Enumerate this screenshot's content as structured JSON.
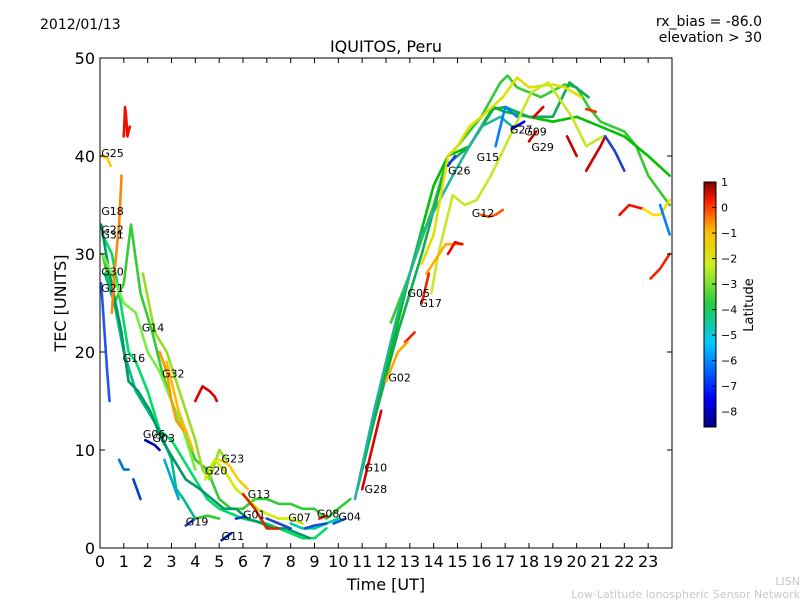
{
  "header": {
    "date": "2012/01/13",
    "rx_bias": "rx_bias = -86.0",
    "elevation": "elevation > 30"
  },
  "credit": {
    "line1": "LISN",
    "line2": "Low-Latitude Ionospheric Sensor Network"
  },
  "chart_data": {
    "type": "scatter",
    "title": "IQUITOS, Peru",
    "xlabel": "Time [UT]",
    "ylabel": "TEC [UNITS]",
    "xlim": [
      0,
      24
    ],
    "ylim": [
      0,
      50
    ],
    "xticks": [
      0,
      1,
      2,
      3,
      4,
      5,
      6,
      7,
      8,
      9,
      10,
      11,
      12,
      13,
      14,
      15,
      16,
      17,
      18,
      19,
      20,
      21,
      22,
      23
    ],
    "yticks": [
      0,
      10,
      20,
      30,
      40,
      50
    ],
    "grid": false,
    "colorbar": {
      "label": "Latitude",
      "range": [
        -8.6,
        1.0
      ],
      "ticks": [
        1,
        0,
        -1,
        -2,
        -3,
        -4,
        -5,
        -6,
        -7,
        -8
      ],
      "colormap": [
        "#00007f",
        "#0000ff",
        "#007fff",
        "#00ffff",
        "#7fff7f",
        "#ffff00",
        "#ff7f00",
        "#ff0000",
        "#7f0000"
      ]
    },
    "satellite_labels": [
      {
        "name": "G25",
        "x": 0.05,
        "y": 39.9
      },
      {
        "name": "G18",
        "x": 0.05,
        "y": 34.0
      },
      {
        "name": "G22",
        "x": 0.05,
        "y": 32.1
      },
      {
        "name": "G31",
        "x": 0.05,
        "y": 31.6
      },
      {
        "name": "G30",
        "x": 0.05,
        "y": 27.8
      },
      {
        "name": "G21",
        "x": 0.05,
        "y": 26.1
      },
      {
        "name": "G14",
        "x": 1.75,
        "y": 22.1
      },
      {
        "name": "G16",
        "x": 0.95,
        "y": 19.0
      },
      {
        "name": "G32",
        "x": 2.6,
        "y": 17.4
      },
      {
        "name": "G06",
        "x": 1.8,
        "y": 11.2
      },
      {
        "name": "G03",
        "x": 2.2,
        "y": 10.8
      },
      {
        "name": "G23",
        "x": 5.1,
        "y": 8.7
      },
      {
        "name": "G20",
        "x": 4.4,
        "y": 7.5
      },
      {
        "name": "G13",
        "x": 6.2,
        "y": 5.1
      },
      {
        "name": "G01",
        "x": 6.0,
        "y": 3.0
      },
      {
        "name": "G07",
        "x": 7.9,
        "y": 2.7
      },
      {
        "name": "G08",
        "x": 9.1,
        "y": 3.1
      },
      {
        "name": "G04",
        "x": 10.0,
        "y": 2.8
      },
      {
        "name": "G19",
        "x": 3.6,
        "y": 2.3
      },
      {
        "name": "G11",
        "x": 5.1,
        "y": 0.8
      },
      {
        "name": "G10",
        "x": 11.1,
        "y": 7.8
      },
      {
        "name": "G28",
        "x": 11.1,
        "y": 5.6
      },
      {
        "name": "G02",
        "x": 12.1,
        "y": 17.0
      },
      {
        "name": "G05",
        "x": 12.9,
        "y": 25.6
      },
      {
        "name": "G17",
        "x": 13.4,
        "y": 24.6
      },
      {
        "name": "G26",
        "x": 14.6,
        "y": 38.1
      },
      {
        "name": "G15",
        "x": 15.8,
        "y": 39.5
      },
      {
        "name": "G12",
        "x": 15.6,
        "y": 33.8
      },
      {
        "name": "G27",
        "x": 17.2,
        "y": 42.3
      },
      {
        "name": "G09",
        "x": 17.8,
        "y": 42.1
      },
      {
        "name": "G29",
        "x": 18.1,
        "y": 40.5
      }
    ],
    "series": [
      {
        "color": "#33cc33",
        "x": [
          12.2,
          13,
          14,
          14.6,
          15,
          16,
          16.8,
          17.1,
          17.5,
          18.5,
          19.5,
          20,
          20.5,
          21,
          21.5,
          22,
          22.5,
          23,
          23.6,
          23.9
        ],
        "y": [
          23,
          28,
          35,
          40,
          41,
          44,
          47.5,
          48.2,
          47,
          46,
          47.3,
          47,
          45,
          43.5,
          43,
          42.5,
          41,
          38,
          36,
          35
        ]
      },
      {
        "color": "#00c000",
        "x": [
          11.0,
          12,
          13,
          14,
          14.6,
          15.5,
          16.5,
          17,
          18,
          19,
          20,
          21,
          22,
          23,
          23.9
        ],
        "y": [
          8,
          18,
          28,
          37,
          40,
          41,
          45,
          44.5,
          44,
          43.5,
          44,
          43,
          42,
          40,
          38
        ]
      },
      {
        "color": "#11aa55",
        "x": [
          10.8,
          11.5,
          12.5,
          13.5,
          14.5,
          15.5,
          16.5,
          17,
          18,
          19,
          19.7,
          20.5
        ],
        "y": [
          6,
          13,
          22,
          30,
          39,
          41,
          44.8,
          45,
          44,
          44,
          47.5,
          46
        ]
      },
      {
        "color": "#22b3a0",
        "x": [
          10.7,
          11.5,
          12.5,
          13.5,
          14.8,
          15.5,
          16,
          16.8,
          17.3
        ],
        "y": [
          5,
          14,
          24,
          32,
          38,
          41,
          43,
          44,
          43
        ]
      },
      {
        "color": "#e0e000",
        "x": [
          13.5,
          14,
          14.6,
          15,
          15.5,
          16,
          16.9,
          17.5,
          18,
          19,
          19.5,
          20.2
        ],
        "y": [
          29,
          32,
          40,
          41,
          43,
          44,
          46,
          48,
          47,
          47.3,
          47,
          46
        ]
      },
      {
        "color": "#c8e628",
        "x": [
          13.9,
          14.2,
          14.8,
          15.3,
          15.8,
          16.4,
          17.2,
          18.1,
          18.8,
          19.8,
          20.4,
          21.1
        ],
        "y": [
          26,
          30,
          36,
          35,
          35.5,
          38,
          42,
          46.5,
          47.5,
          44,
          41,
          42
        ]
      },
      {
        "color": "#ffaa00",
        "x": [
          13.7,
          14.5,
          15.2
        ],
        "y": [
          28,
          31,
          31
        ]
      },
      {
        "color": "#ee0000",
        "x": [
          14.6,
          14.9,
          15.2
        ],
        "y": [
          30,
          31.2,
          31
        ]
      },
      {
        "color": "#ff5500",
        "x": [
          16.0,
          16.3,
          16.6,
          16.9
        ],
        "y": [
          34,
          33.8,
          34,
          34.5
        ]
      },
      {
        "color": "#1e3cdc",
        "x": [
          14.6,
          14.9
        ],
        "y": [
          39,
          40
        ]
      },
      {
        "color": "#007fff",
        "x": [
          16.6,
          17.0,
          17.5
        ],
        "y": [
          41,
          45,
          44
        ]
      },
      {
        "color": "#0000cc",
        "x": [
          17.3,
          17.8
        ],
        "y": [
          42.8,
          43.5
        ]
      },
      {
        "color": "#dd0000",
        "x": [
          18.2,
          18.6
        ],
        "y": [
          44,
          45
        ]
      },
      {
        "color": "#cc0000",
        "x": [
          18.0,
          18.3
        ],
        "y": [
          41.5,
          42.5
        ]
      },
      {
        "color": "#cc0000",
        "x": [
          19.6,
          20.0
        ],
        "y": [
          42,
          40
        ]
      },
      {
        "color": "#cc0000",
        "x": [
          20.4,
          21.0,
          21.2
        ],
        "y": [
          38.5,
          41,
          42
        ]
      },
      {
        "color": "#ee3300",
        "x": [
          20.4,
          20.8
        ],
        "y": [
          44.8,
          44.5
        ]
      },
      {
        "color": "#2040cc",
        "x": [
          21.2,
          21.6,
          22.0
        ],
        "y": [
          42,
          40.5,
          38.5
        ]
      },
      {
        "color": "#ee1100",
        "x": [
          21.8,
          22.2,
          22.8
        ],
        "y": [
          34,
          35,
          34.6
        ]
      },
      {
        "color": "#ffdd00",
        "x": [
          22.8,
          23.2,
          23.5,
          23.9
        ],
        "y": [
          34.6,
          34,
          34,
          35.5
        ]
      },
      {
        "color": "#ee2200",
        "x": [
          23.1,
          23.5,
          23.9
        ],
        "y": [
          27.5,
          28.5,
          30
        ]
      },
      {
        "color": "#007fff",
        "x": [
          23.5,
          23.9
        ],
        "y": [
          35,
          32
        ]
      },
      {
        "color": "#2255ee",
        "x": [
          0.05,
          0.3,
          0.4
        ],
        "y": [
          27,
          18,
          15
        ]
      },
      {
        "color": "#00dd66",
        "x": [
          0.1,
          0.5,
          0.8,
          1.2,
          1.5,
          2.0,
          2.5,
          3.0,
          3.5,
          4.0,
          4.5,
          5.0,
          5.5,
          6.0,
          7.0,
          7.5,
          8.0,
          8.5,
          9.0,
          9.5
        ],
        "y": [
          32,
          30,
          26,
          20,
          19,
          16,
          12,
          11,
          9,
          7,
          5,
          4,
          3.5,
          3,
          2.5,
          2,
          1.5,
          1,
          1,
          2
        ]
      },
      {
        "color": "#33cc33",
        "x": [
          0.1,
          0.6,
          1.0,
          1.3,
          1.7,
          2.2,
          2.6,
          3.0,
          3.5,
          4.0,
          4.5,
          5.0,
          5.5,
          6.0,
          6.5,
          7.0,
          7.5,
          8.0,
          8.5,
          9.0,
          9.5,
          10.0,
          10.5
        ],
        "y": [
          30,
          25,
          27,
          33,
          26,
          22,
          18,
          15,
          12,
          9,
          8,
          5,
          4,
          4,
          5,
          5,
          4.5,
          4.5,
          4,
          4,
          3,
          4,
          5
        ]
      },
      {
        "color": "#00bb88",
        "x": [
          0.2,
          0.6,
          1.0,
          1.5,
          2.0,
          2.5,
          3.0,
          3.2,
          3.5,
          4.0
        ],
        "y": [
          28,
          25,
          20,
          16,
          14,
          12,
          9,
          6,
          5,
          3
        ]
      },
      {
        "color": "#009966",
        "x": [
          0.05,
          0.4,
          0.9,
          1.2,
          1.6,
          2.1,
          2.6,
          3.1,
          3.6,
          4.2,
          4.7,
          5.2,
          5.7,
          6.2,
          6.8,
          7.3,
          7.8,
          8.3,
          8.8
        ],
        "y": [
          33,
          28,
          22,
          17,
          16,
          14,
          11,
          9,
          7,
          6,
          5,
          4,
          4,
          3,
          2.5,
          2,
          2,
          1.5,
          1
        ]
      },
      {
        "color": "#77ee44",
        "x": [
          0.1,
          0.5,
          1.0,
          1.5,
          2.0,
          2.5,
          3.0,
          3.5,
          4.0
        ],
        "y": [
          30,
          28,
          25,
          24,
          20,
          18,
          15,
          12,
          8
        ]
      },
      {
        "color": "#99dd22",
        "x": [
          1.8,
          2.3,
          2.8,
          3.2,
          3.6,
          4.0,
          4.3,
          4.6,
          5.0,
          5.3
        ],
        "y": [
          28,
          22,
          20,
          17,
          14,
          11,
          8,
          7,
          10,
          9
        ]
      },
      {
        "color": "#ccee00",
        "x": [
          4.4,
          4.8,
          5.2,
          5.7,
          6.2,
          6.6,
          7.0,
          7.5,
          8.0,
          8.5
        ],
        "y": [
          7,
          9,
          8,
          6,
          5,
          4,
          3.5,
          3,
          3,
          2.5
        ]
      },
      {
        "color": "#ffcc00",
        "x": [
          0.05,
          0.3,
          0.45
        ],
        "y": [
          40,
          39.8,
          39
        ]
      },
      {
        "color": "#ff8800",
        "x": [
          0.5,
          0.6,
          0.8,
          0.9
        ],
        "y": [
          24,
          28,
          33,
          38
        ]
      },
      {
        "color": "#ee1100",
        "x": [
          1.0,
          1.05,
          1.1,
          1.15,
          1.25
        ],
        "y": [
          42,
          45,
          44,
          42,
          43
        ]
      },
      {
        "color": "#ff9900",
        "x": [
          2.5,
          2.8,
          3.0,
          3.2,
          3.5
        ],
        "y": [
          20,
          18,
          15,
          13,
          12
        ]
      },
      {
        "color": "#ffbb00",
        "x": [
          2.8,
          3.1,
          3.3,
          3.6,
          3.9
        ],
        "y": [
          19,
          16,
          14,
          12,
          10
        ]
      },
      {
        "color": "#dd0000",
        "x": [
          4.0,
          4.3,
          4.6,
          4.8,
          4.9
        ],
        "y": [
          15,
          16.5,
          16,
          15.5,
          15
        ]
      },
      {
        "color": "#0077dd",
        "x": [
          0.8,
          1.0,
          1.2
        ],
        "y": [
          9,
          8,
          8
        ]
      },
      {
        "color": "#0000aa",
        "x": [
          1.9,
          2.3,
          2.5
        ],
        "y": [
          11,
          10.5,
          10
        ]
      },
      {
        "color": "#0044cc",
        "x": [
          1.4,
          1.7
        ],
        "y": [
          7,
          5
        ]
      },
      {
        "color": "#00aacc",
        "x": [
          2.7,
          3.0,
          3.3
        ],
        "y": [
          9,
          7,
          5
        ]
      },
      {
        "color": "#1133bb",
        "x": [
          3.6,
          4.0
        ],
        "y": [
          2.3,
          3
        ]
      },
      {
        "color": "#33cc33",
        "x": [
          4.0,
          4.5,
          5.0
        ],
        "y": [
          3,
          3.3,
          3
        ]
      },
      {
        "color": "#0022aa",
        "x": [
          5.1,
          5.5
        ],
        "y": [
          0.8,
          1.5
        ]
      },
      {
        "color": "#0044cc",
        "x": [
          5.7,
          6.1
        ],
        "y": [
          3,
          3.2
        ]
      },
      {
        "color": "#ffcc00",
        "x": [
          5.0,
          5.4,
          5.8,
          6.2
        ],
        "y": [
          9,
          8.5,
          7,
          6
        ]
      },
      {
        "color": "#dd2200",
        "x": [
          6.0,
          6.5,
          7.0,
          7.5
        ],
        "y": [
          5.5,
          4,
          2,
          2
        ]
      },
      {
        "color": "#2244cc",
        "x": [
          7.0,
          7.5,
          8.0
        ],
        "y": [
          3,
          2.5,
          2
        ]
      },
      {
        "color": "#00ccaa",
        "x": [
          8.0,
          8.5,
          9.0,
          9.5,
          10.0
        ],
        "y": [
          2.5,
          2,
          2,
          2.5,
          3
        ]
      },
      {
        "color": "#1155cc",
        "x": [
          8.6,
          9.0,
          9.5
        ],
        "y": [
          2,
          2.3,
          2.5
        ]
      },
      {
        "color": "#ee1100",
        "x": [
          9.2,
          9.5
        ],
        "y": [
          3,
          3.3
        ]
      },
      {
        "color": "#0066cc",
        "x": [
          9.8,
          10.3
        ],
        "y": [
          2.5,
          3
        ]
      },
      {
        "color": "#dd0000",
        "x": [
          11.0,
          11.4,
          11.8
        ],
        "y": [
          6,
          10,
          14
        ]
      },
      {
        "color": "#ee2200",
        "x": [
          12.8,
          13.2
        ],
        "y": [
          21,
          22
        ]
      },
      {
        "color": "#ffaa00",
        "x": [
          12.0,
          12.5,
          12.9
        ],
        "y": [
          17,
          20,
          21
        ]
      },
      {
        "color": "#ee2200",
        "x": [
          13.5,
          13.8
        ],
        "y": [
          25,
          28
        ]
      }
    ]
  }
}
